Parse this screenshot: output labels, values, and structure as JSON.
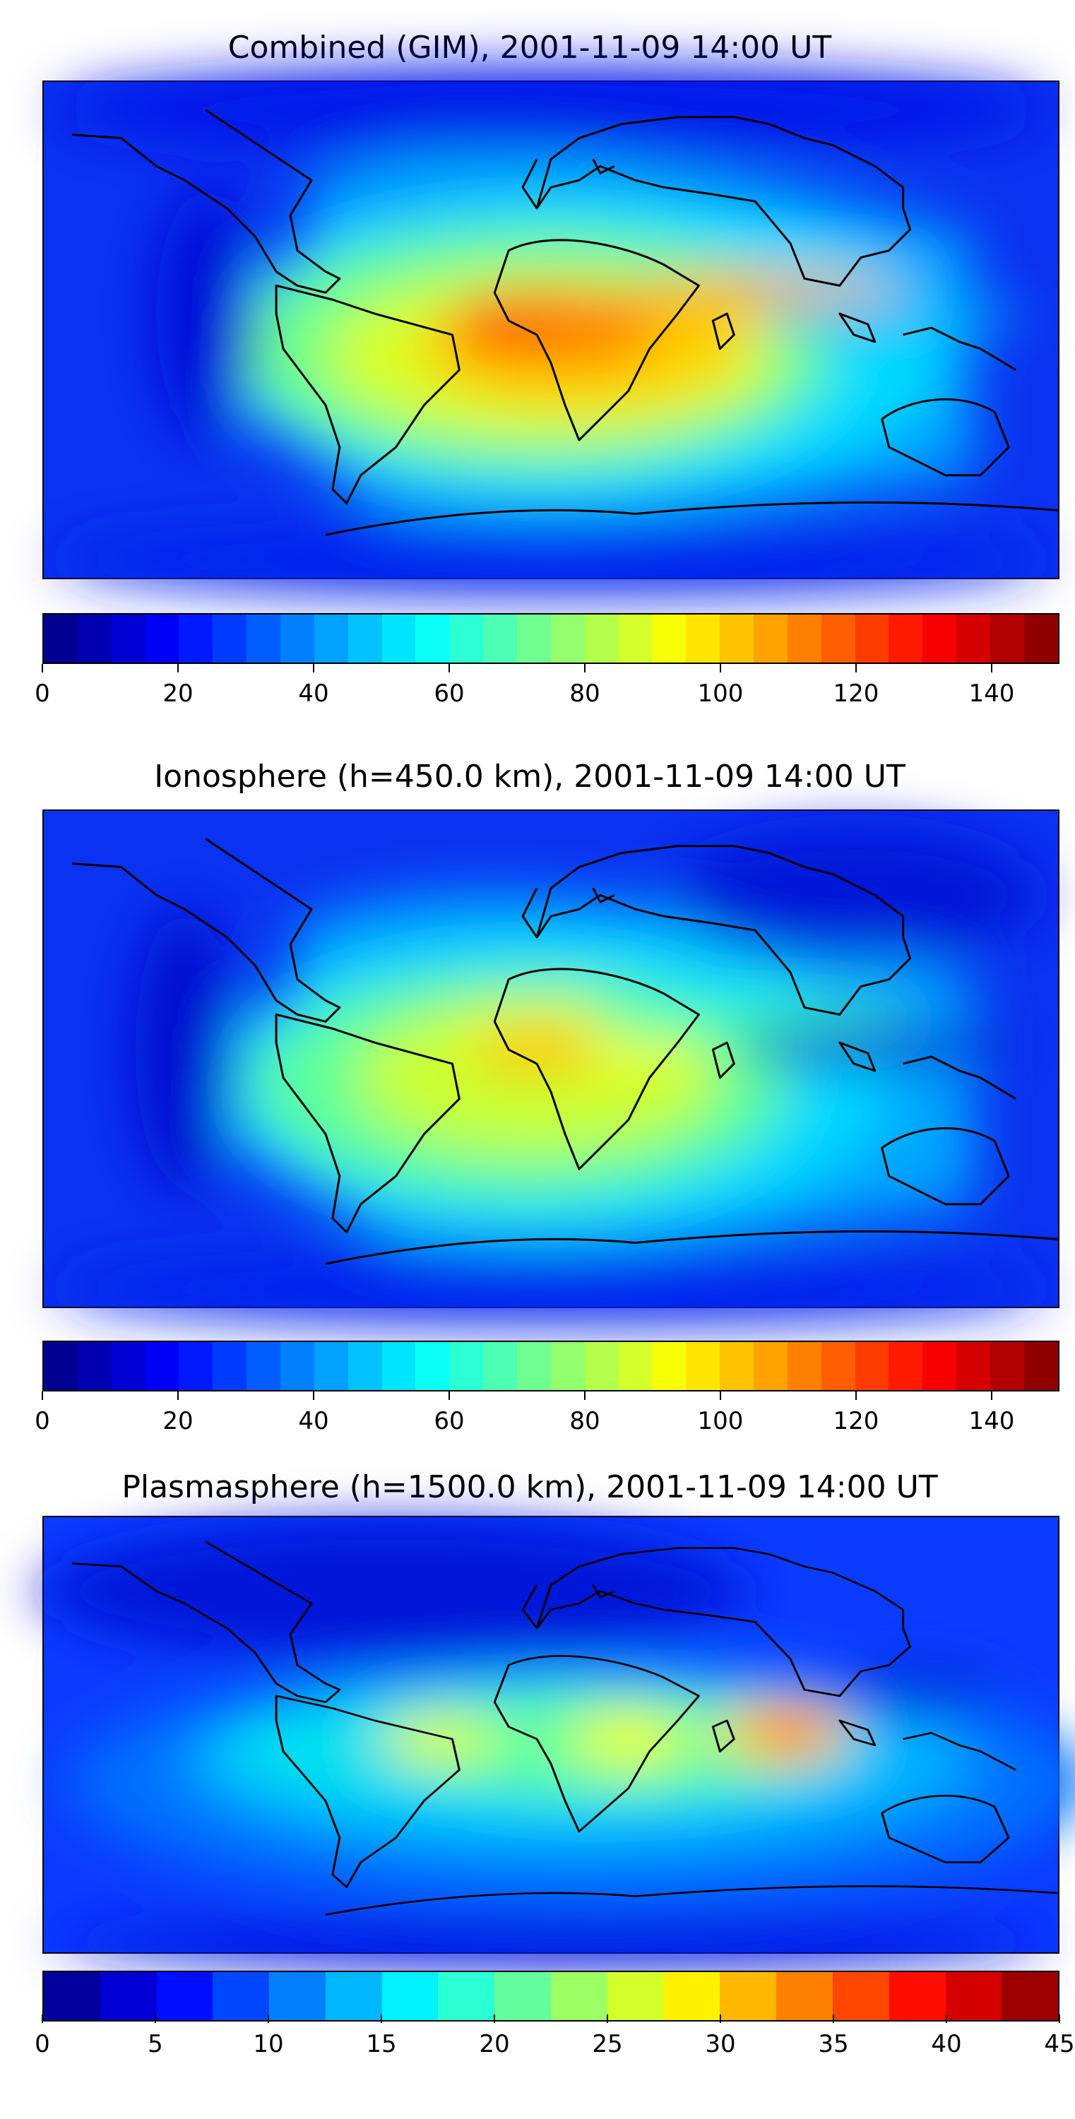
{
  "panels": [
    {
      "title": "Combined (GIM), 2001-11-09 14:00 UT",
      "colorbar": {
        "min": 0,
        "max": 150,
        "levels": 30,
        "ticks": [
          "0",
          "20",
          "40",
          "60",
          "80",
          "100",
          "120",
          "140"
        ]
      }
    },
    {
      "title": "Ionosphere  (h=450.0 km), 2001-11-09 14:00 UT",
      "colorbar": {
        "min": 0,
        "max": 150,
        "levels": 30,
        "ticks": [
          "0",
          "20",
          "40",
          "60",
          "80",
          "100",
          "120",
          "140"
        ]
      }
    },
    {
      "title": "Plasmasphere (h=1500.0 km), 2001-11-09 14:00 UT",
      "colorbar": {
        "min": 0,
        "max": 45,
        "levels": 18,
        "ticks": [
          "0",
          "5",
          "10",
          "15",
          "20",
          "25",
          "30",
          "35",
          "40",
          "45"
        ]
      }
    }
  ],
  "colormap": "jet",
  "coastline_color": "#000000"
}
